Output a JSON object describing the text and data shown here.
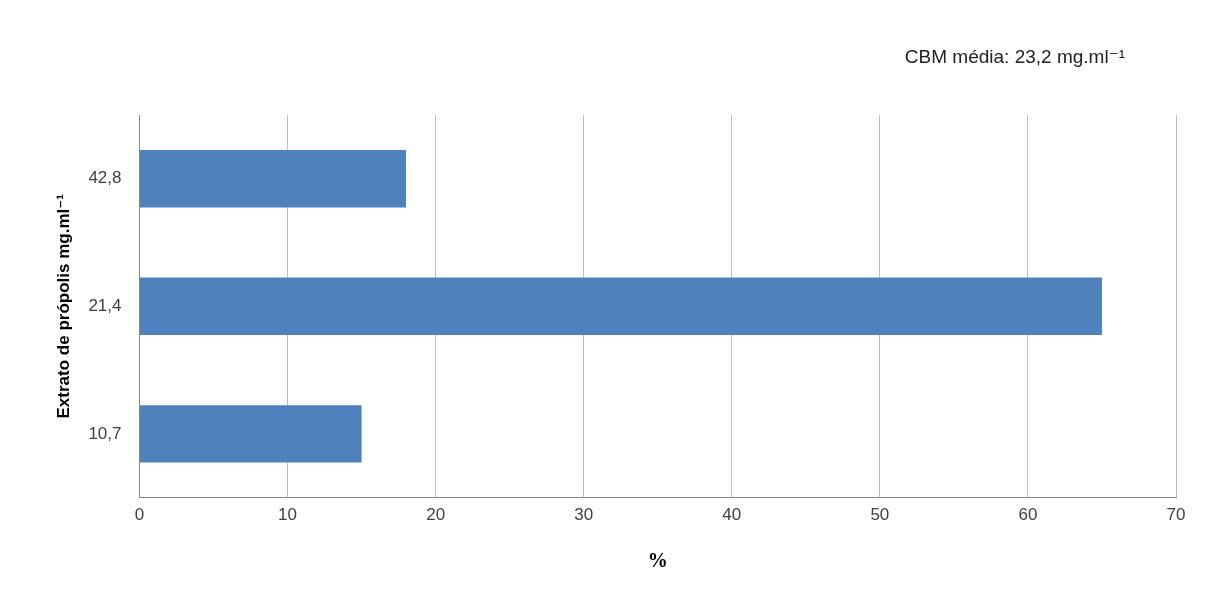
{
  "chart_data": {
    "type": "bar",
    "orientation": "horizontal",
    "categories": [
      "42,8",
      "21,4",
      "10,7"
    ],
    "series": [
      {
        "color": "#4f81bd",
        "values": [
          18,
          65,
          15
        ]
      }
    ],
    "xlim": [
      0,
      70
    ],
    "xticks": [
      0,
      10,
      20,
      30,
      40,
      50,
      60,
      70
    ],
    "xlabel": "%",
    "ylabel": "Extrato de própolis mg.ml⁻¹",
    "annotations": [
      "CBM média: 23,2 mg.ml⁻¹"
    ],
    "grid": "x",
    "legend": false
  }
}
